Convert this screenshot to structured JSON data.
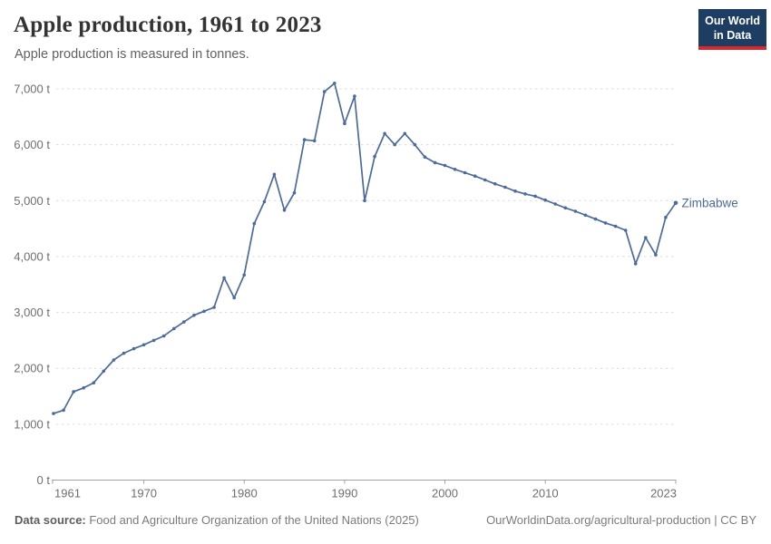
{
  "header": {
    "title": "Apple production, 1961 to 2023",
    "subtitle": "Apple production is measured in tonnes."
  },
  "logo": {
    "line1": "Our World",
    "line2": "in Data",
    "bg_color": "#1d3d63",
    "accent_color": "#d6282d"
  },
  "chart_data": {
    "type": "line",
    "title": "Apple production, 1961 to 2023",
    "unit": "tonnes",
    "entity": "Zimbabwe",
    "line_color": "#4C6A9C",
    "grid": true,
    "legend_position": "end-of-line-label",
    "xlim": [
      1961,
      2023
    ],
    "ylim": [
      0,
      7000
    ],
    "x": [
      1961,
      1962,
      1963,
      1964,
      1965,
      1966,
      1967,
      1968,
      1969,
      1970,
      1971,
      1972,
      1973,
      1974,
      1975,
      1976,
      1977,
      1978,
      1979,
      1980,
      1981,
      1982,
      1983,
      1984,
      1985,
      1986,
      1987,
      1988,
      1989,
      1990,
      1991,
      1992,
      1993,
      1994,
      1995,
      1996,
      1997,
      1998,
      1999,
      2000,
      2001,
      2002,
      2003,
      2004,
      2005,
      2006,
      2007,
      2008,
      2009,
      2010,
      2011,
      2012,
      2013,
      2014,
      2015,
      2016,
      2017,
      2018,
      2019,
      2020,
      2021,
      2022,
      2023
    ],
    "series": [
      {
        "name": "Zimbabwe",
        "values": [
          1190,
          1250,
          1580,
          1650,
          1740,
          1950,
          2150,
          2270,
          2350,
          2420,
          2500,
          2580,
          2710,
          2830,
          2950,
          3020,
          3090,
          3620,
          3260,
          3670,
          4590,
          4980,
          5470,
          4830,
          5140,
          6090,
          6070,
          6950,
          7100,
          6380,
          6870,
          5000,
          5790,
          6200,
          6000,
          6200,
          6000,
          5780,
          5680,
          5630,
          5560,
          5500,
          5440,
          5370,
          5300,
          5240,
          5170,
          5120,
          5080,
          5010,
          4940,
          4870,
          4810,
          4740,
          4670,
          4600,
          4540,
          4470,
          3870,
          4340,
          4030,
          4700,
          4960
        ]
      }
    ],
    "xticks": [
      1961,
      1970,
      1980,
      1990,
      2000,
      2010,
      2023
    ],
    "yticks": [
      0,
      1000,
      2000,
      3000,
      4000,
      5000,
      6000,
      7000
    ],
    "ytick_labels": [
      "0 t",
      "1,000 t",
      "2,000 t",
      "3,000 t",
      "4,000 t",
      "5,000 t",
      "6,000 t",
      "7,000 t"
    ],
    "axis_color": "#a3a3a3",
    "gridline_color": "#dcdcdc",
    "tick_label_color": "#6f6f6f"
  },
  "footer": {
    "source_label": "Data source:",
    "source_text": " Food and Agriculture Organization of the United Nations (2025)",
    "link_text": "OurWorldinData.org/agricultural-production | CC BY"
  }
}
